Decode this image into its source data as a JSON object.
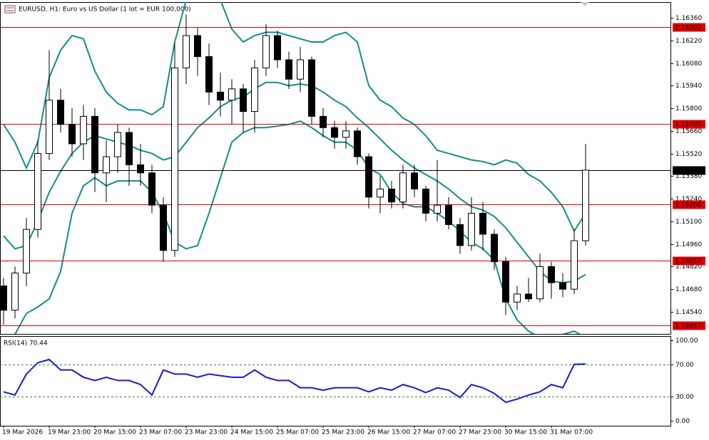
{
  "chart_data": [
    {
      "type": "candlestick",
      "title": "EURUSD, H1:  Euro vs US Dollar (1 lot = EUR 100,000)",
      "categories": [
        "19 Mar 2026",
        null,
        null,
        null,
        "19 Mar 23:00",
        null,
        null,
        null,
        "20 Mar 15:00",
        null,
        null,
        null,
        "23 Mar 07:00",
        null,
        null,
        null,
        "23 Mar 23:00",
        null,
        null,
        null,
        "24 Mar 15:00",
        null,
        null,
        null,
        "25 Mar 07:00",
        null,
        null,
        null,
        "25 Mar 23:00",
        null,
        null,
        null,
        "26 Mar 15:00",
        null,
        null,
        null,
        "27 Mar 07:00",
        null,
        null,
        null,
        "27 Mar 23:00",
        null,
        null,
        null,
        "30 Mar 15:00",
        null,
        null,
        null,
        "31 Mar 07:00",
        null,
        null,
        null
      ],
      "open": [
        1.147,
        1.1455,
        1.1478,
        1.1505,
        1.1552,
        1.1585,
        1.157,
        1.1558,
        1.1575,
        1.154,
        1.155,
        1.1565,
        1.1545,
        1.154,
        1.152,
        1.1492,
        1.1605,
        1.1625,
        1.1612,
        1.159,
        1.1585,
        1.1592,
        1.1578,
        1.1605,
        1.1625,
        1.161,
        1.1598,
        1.161,
        1.1575,
        1.1568,
        1.1562,
        1.1566,
        1.155,
        1.1525,
        1.153,
        1.1522,
        1.154,
        1.153,
        1.1515,
        1.152,
        1.1508,
        1.1495,
        1.1515,
        1.1502,
        1.1485,
        1.146,
        1.1465,
        1.1462,
        1.1482,
        1.1472,
        1.1468,
        1.1498
      ],
      "high": [
        1.1475,
        1.1482,
        1.1512,
        1.156,
        1.1616,
        1.1592,
        1.158,
        1.1582,
        1.158,
        1.156,
        1.157,
        1.1568,
        1.1558,
        1.1545,
        1.1525,
        1.162,
        1.1638,
        1.163,
        1.162,
        1.1602,
        1.1598,
        1.1595,
        1.161,
        1.1632,
        1.1628,
        1.1615,
        1.1618,
        1.1612,
        1.158,
        1.1572,
        1.1572,
        1.1568,
        1.1552,
        1.1538,
        1.1535,
        1.1545,
        1.1545,
        1.1532,
        1.1548,
        1.1525,
        1.1512,
        1.1525,
        1.1522,
        1.1505,
        1.1488,
        1.147,
        1.1475,
        1.149,
        1.1485,
        1.1478,
        1.1505,
        1.1558
      ],
      "low": [
        1.1446,
        1.145,
        1.147,
        1.15,
        1.1548,
        1.1565,
        1.155,
        1.1548,
        1.1528,
        1.1522,
        1.154,
        1.1532,
        1.1532,
        1.1515,
        1.1485,
        1.1488,
        1.1595,
        1.16,
        1.1582,
        1.1575,
        1.157,
        1.1565,
        1.1565,
        1.16,
        1.1605,
        1.1592,
        1.159,
        1.157,
        1.1562,
        1.1555,
        1.1555,
        1.1545,
        1.1518,
        1.1515,
        1.1518,
        1.1518,
        1.1525,
        1.151,
        1.151,
        1.1505,
        1.149,
        1.1492,
        1.1492,
        1.148,
        1.1452,
        1.1455,
        1.146,
        1.146,
        1.1462,
        1.1463,
        1.1465,
        1.1495
      ],
      "close": [
        1.1455,
        1.1478,
        1.1505,
        1.1552,
        1.1585,
        1.157,
        1.1558,
        1.1575,
        1.154,
        1.155,
        1.1565,
        1.1545,
        1.154,
        1.152,
        1.1492,
        1.1605,
        1.1625,
        1.1612,
        1.159,
        1.1585,
        1.1592,
        1.1578,
        1.1605,
        1.1625,
        1.161,
        1.1598,
        1.161,
        1.1575,
        1.1568,
        1.1562,
        1.1566,
        1.155,
        1.1525,
        1.153,
        1.1522,
        1.154,
        1.153,
        1.1515,
        1.152,
        1.1508,
        1.1495,
        1.1515,
        1.1502,
        1.1485,
        1.146,
        1.1465,
        1.1462,
        1.1482,
        1.1472,
        1.1468,
        1.1498,
        1.15417
      ],
      "bull_color": "#ffffff",
      "bear_color": "#000000",
      "overlays": [
        {
          "color": "#138c8c",
          "values": [
            1.157,
            1.1559,
            1.1543,
            1.1559,
            1.1599,
            1.1616,
            1.1625,
            1.1623,
            1.1603,
            1.159,
            1.1583,
            1.1579,
            1.1579,
            1.1576,
            1.1581,
            1.1621,
            1.1647,
            1.166,
            1.1656,
            1.1647,
            1.1629,
            1.1621,
            1.1625,
            1.1627,
            1.1627,
            1.1625,
            1.1623,
            1.1621,
            1.1621,
            1.1625,
            1.1627,
            1.1621,
            1.1594,
            1.1585,
            1.1581,
            1.1574,
            1.157,
            1.1563,
            1.1554,
            1.1552,
            1.155,
            1.1548,
            1.1547,
            1.1545,
            1.1548,
            1.1546,
            1.1539,
            1.1535,
            1.1528,
            1.1519,
            1.1504,
            1.1515
          ]
        },
        {
          "color": "#138c8c",
          "values": [
            1.1501,
            1.1493,
            1.1495,
            1.151,
            1.1528,
            1.1541,
            1.1552,
            1.1559,
            1.1563,
            1.1561,
            1.1559,
            1.1557,
            1.1554,
            1.1552,
            1.1548,
            1.155,
            1.1559,
            1.1568,
            1.1574,
            1.1581,
            1.1585,
            1.1587,
            1.1592,
            1.1596,
            1.1596,
            1.1594,
            1.1595,
            1.1594,
            1.159,
            1.1585,
            1.1581,
            1.1574,
            1.1568,
            1.1561,
            1.1554,
            1.1548,
            1.1543,
            1.1539,
            1.1535,
            1.153,
            1.1524,
            1.1519,
            1.1517,
            1.1513,
            1.1506,
            1.1497,
            1.1488,
            1.1479,
            1.1473,
            1.1472,
            1.1473,
            1.1477
          ]
        },
        {
          "color": "#138c8c",
          "values": [
            1.1435,
            1.144,
            1.1453,
            1.1457,
            1.1462,
            1.1479,
            1.1515,
            1.1532,
            1.1537,
            1.1532,
            1.1535,
            1.1535,
            1.1535,
            1.1528,
            1.1515,
            1.1497,
            1.1493,
            1.1495,
            1.1515,
            1.1537,
            1.1559,
            1.1565,
            1.1568,
            1.1568,
            1.1569,
            1.157,
            1.1572,
            1.1568,
            1.1563,
            1.1559,
            1.1559,
            1.1554,
            1.1543,
            1.1539,
            1.1528,
            1.1521,
            1.1519,
            1.1519,
            1.1515,
            1.151,
            1.1504,
            1.1497,
            1.1493,
            1.1486,
            1.1462,
            1.1449,
            1.1442,
            1.1438,
            1.1438,
            1.144,
            1.1442,
            1.1438
          ]
        }
      ],
      "levels": [
        {
          "value": 1.16302,
          "color": "#e00000"
        },
        {
          "value": 1.15705,
          "color": "#e00000"
        },
        {
          "value": 1.15417,
          "color": "#000000"
        },
        {
          "value": 1.15206,
          "color": "#e00000"
        },
        {
          "value": 1.14857,
          "color": "#e00000"
        },
        {
          "value": 1.14457,
          "color": "#e00000"
        }
      ],
      "ylim": [
        1.14403,
        1.16457
      ],
      "yticks": [
        {
          "value": 1.1636,
          "label": "1.16360"
        },
        {
          "value": 1.1622,
          "label": "1.16220"
        },
        {
          "value": 1.1608,
          "label": "1.16080"
        },
        {
          "value": 1.1594,
          "label": "1.15940"
        },
        {
          "value": 1.158,
          "label": "1.15800"
        },
        {
          "value": 1.1566,
          "label": "1.15660"
        },
        {
          "value": 1.1552,
          "label": "1.15520"
        },
        {
          "value": 1.1538,
          "label": "1.15380"
        },
        {
          "value": 1.1524,
          "label": "1.15240"
        },
        {
          "value": 1.151,
          "label": "1.15100"
        },
        {
          "value": 1.1496,
          "label": "1.14960"
        },
        {
          "value": 1.1482,
          "label": "1.14820"
        },
        {
          "value": 1.1468,
          "label": "1.14680"
        },
        {
          "value": 1.1454,
          "label": "1.14540"
        }
      ]
    },
    {
      "type": "line",
      "title": "RSI(14) 70.44",
      "color": "#1a1acc",
      "values": [
        36,
        32,
        58,
        72,
        76,
        63,
        63,
        54,
        50,
        54,
        50,
        50,
        45,
        32,
        63,
        58,
        58,
        54,
        58,
        56,
        54,
        54,
        63,
        54,
        50,
        50,
        41,
        41,
        38,
        41,
        41,
        41,
        36,
        41,
        38,
        45,
        41,
        35,
        41,
        38,
        29,
        45,
        41,
        34,
        23,
        27,
        32,
        36,
        45,
        41,
        70,
        70.44
      ],
      "levels": [
        70,
        30
      ],
      "level_color": "#2e8b2e",
      "ylim": [
        -6,
        105
      ],
      "yticks": [
        {
          "value": 100,
          "label": "100.00"
        },
        {
          "value": 70,
          "label": "70.00"
        },
        {
          "value": 30,
          "label": "30.00"
        },
        {
          "value": 0,
          "label": "0.00"
        }
      ]
    }
  ]
}
